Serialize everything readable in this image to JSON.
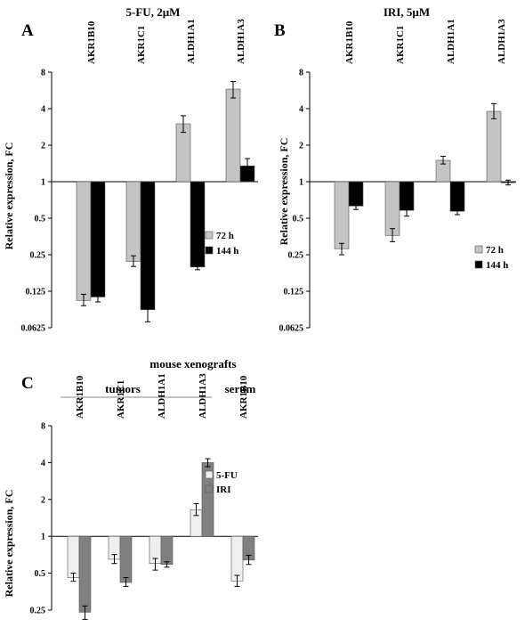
{
  "chart_data": [
    {
      "panel": "A",
      "type": "bar",
      "title": "5-FU, 2µM",
      "ylabel": "Relative expression, FC",
      "yscale": "log2",
      "ylim": [
        0.0625,
        8
      ],
      "yticks": [
        "8",
        "4",
        "2",
        "1",
        "0.5",
        "0.25",
        "0.125",
        "0.0625"
      ],
      "categories": [
        "AKR1B10",
        "AKR1C1",
        "ALDH1A1",
        "ALDH1A3"
      ],
      "series": [
        {
          "name": "72 h",
          "color": "#c4c4c4",
          "values": [
            0.105,
            0.22,
            3.0,
            5.8
          ],
          "err_low": [
            0.095,
            0.2,
            2.55,
            4.9
          ],
          "err_high": [
            0.118,
            0.245,
            3.5,
            6.7
          ]
        },
        {
          "name": "144 h",
          "color": "#000000",
          "values": [
            0.112,
            0.088,
            0.198,
            1.35
          ],
          "err_low": [
            0.102,
            0.07,
            0.188,
            1.15
          ],
          "err_high": [
            0.124,
            0.098,
            0.208,
            1.55
          ]
        }
      ],
      "legend_position": "right-middle"
    },
    {
      "panel": "B",
      "type": "bar",
      "title": "IRI, 5µM",
      "ylabel": "Relative expression, FC",
      "yscale": "log2",
      "ylim": [
        0.0625,
        8
      ],
      "yticks": [
        "8",
        "4",
        "2",
        "1",
        "0.5",
        "0.25",
        "0.125",
        "0.0625"
      ],
      "categories": [
        "AKR1B10",
        "AKR1C1",
        "ALDH1A1",
        "ALDH1A3"
      ],
      "series": [
        {
          "name": "72 h",
          "color": "#c4c4c4",
          "values": [
            0.28,
            0.36,
            1.5,
            3.8
          ],
          "err_low": [
            0.25,
            0.32,
            1.4,
            3.3
          ],
          "err_high": [
            0.31,
            0.41,
            1.62,
            4.4
          ]
        },
        {
          "name": "144 h",
          "color": "#000000",
          "values": [
            0.63,
            0.58,
            0.57,
            0.98
          ],
          "err_low": [
            0.59,
            0.52,
            0.535,
            0.94
          ],
          "err_high": [
            0.67,
            0.64,
            0.61,
            1.03
          ]
        }
      ],
      "legend_position": "right-bottom"
    },
    {
      "panel": "C",
      "type": "bar",
      "title": "mouse xenografts",
      "ylabel": "Relative expression, FC",
      "yscale": "log2",
      "ylim": [
        0.25,
        8
      ],
      "yticks": [
        "8",
        "4",
        "2",
        "1",
        "0.5",
        "0.25"
      ],
      "group_labels": [
        "tumors",
        "serum"
      ],
      "categories": [
        "AKR1B10",
        "AKR1C1",
        "ALDH1A1",
        "ALDH1A3",
        "AKR1B10"
      ],
      "series": [
        {
          "name": "5-FU",
          "color": "#efefef",
          "values": [
            0.46,
            0.65,
            0.6,
            1.65,
            0.43
          ],
          "err_low": [
            0.43,
            0.6,
            0.53,
            1.48,
            0.39
          ],
          "err_high": [
            0.5,
            0.71,
            0.66,
            1.85,
            0.48
          ]
        },
        {
          "name": "IRI",
          "color": "#808080",
          "values": [
            0.24,
            0.42,
            0.59,
            4.0,
            0.64
          ],
          "err_low": [
            0.21,
            0.39,
            0.56,
            3.7,
            0.59
          ],
          "err_high": [
            0.27,
            0.46,
            0.62,
            4.3,
            0.7
          ]
        }
      ],
      "legend_position": "right-middle"
    }
  ]
}
